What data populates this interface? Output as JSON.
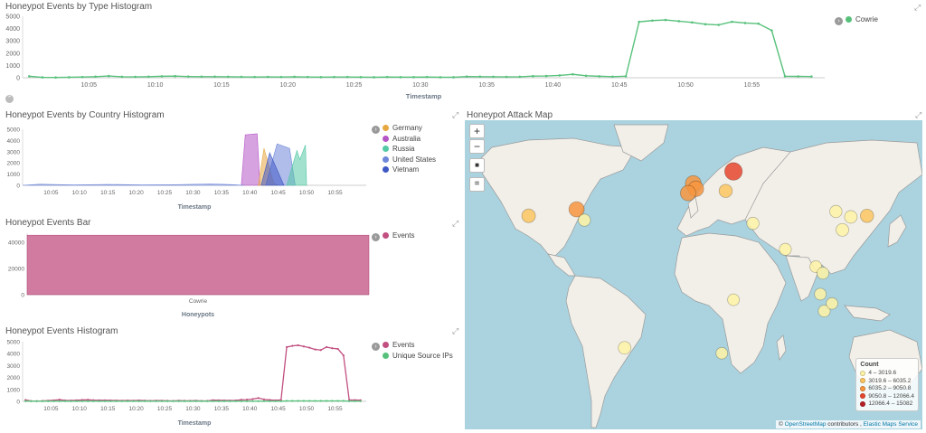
{
  "panels": {
    "type_hist": {
      "title": "Honeypot Events by Type Histogram",
      "xlabel": "Timestamp",
      "legend": [
        {
          "label": "Cowrie",
          "color": "#57c17b"
        }
      ]
    },
    "country_hist": {
      "title": "Honeypot Events by Country Histogram",
      "xlabel": "Timestamp",
      "legend": [
        {
          "label": "Germany",
          "color": "#e7a842"
        },
        {
          "label": "Australia",
          "color": "#b556c7"
        },
        {
          "label": "Russia",
          "color": "#54c9a6"
        },
        {
          "label": "United States",
          "color": "#6f87d8"
        },
        {
          "label": "Vietnam",
          "color": "#3f58c4"
        }
      ]
    },
    "bar": {
      "title": "Honeypot Events Bar",
      "xlabel": "Honeypots",
      "legend": [
        {
          "label": "Events",
          "color": "#c14f80"
        }
      ]
    },
    "events_hist": {
      "title": "Honeypot Events Histogram",
      "xlabel": "Timestamp",
      "legend": [
        {
          "label": "Events",
          "color": "#c14f80"
        },
        {
          "label": "Unique Source IPs",
          "color": "#57c17b"
        }
      ]
    },
    "map": {
      "title": "Honeypot Attack Map",
      "buttons": {
        "zoom_in": "+",
        "zoom_out": "−",
        "stop": "■",
        "crop": "⌗"
      },
      "legend_title": "Count",
      "legend": [
        {
          "label": "4 – 3019.6",
          "color": "#fff3a6"
        },
        {
          "label": "3019.6 – 6035.2",
          "color": "#fcc661"
        },
        {
          "label": "6035.2 – 9050.8",
          "color": "#f7953f"
        },
        {
          "label": "9050.8 – 12066.4",
          "color": "#e8472e"
        },
        {
          "label": "12066.4 – 15082",
          "color": "#b81f24"
        }
      ],
      "attribution": {
        "prefix": "© ",
        "osm": "OpenStreetMap",
        "mid": " contributors , ",
        "ems": "Elastic Maps Service"
      }
    }
  },
  "chart_data": [
    {
      "type": "line",
      "title": "Honeypot Events by Type Histogram",
      "xlabel": "Timestamp",
      "ylabel": "",
      "x_ticks": [
        "10:05",
        "10:10",
        "10:15",
        "10:20",
        "10:25",
        "10:30",
        "10:35",
        "10:40",
        "10:45",
        "10:50",
        "10:55"
      ],
      "y_ticks": [
        0,
        1000,
        2000,
        3000,
        4000,
        5000
      ],
      "ylim": [
        0,
        5000
      ],
      "x_minutes": [
        0,
        1,
        2,
        3,
        4,
        5,
        6,
        7,
        8,
        9,
        10,
        11,
        12,
        13,
        14,
        15,
        16,
        17,
        18,
        19,
        20,
        21,
        22,
        23,
        24,
        25,
        26,
        27,
        28,
        29,
        30,
        31,
        32,
        33,
        34,
        35,
        36,
        37,
        38,
        39,
        40,
        41,
        42,
        43,
        44,
        45,
        46,
        47,
        48,
        49,
        50,
        51,
        52,
        53,
        54,
        55,
        56,
        57,
        58,
        59
      ],
      "series": [
        {
          "name": "Cowrie",
          "color": "#57c17b",
          "values": [
            120,
            30,
            20,
            40,
            60,
            90,
            140,
            80,
            70,
            90,
            120,
            130,
            100,
            90,
            90,
            80,
            70,
            60,
            70,
            60,
            80,
            60,
            50,
            60,
            60,
            50,
            40,
            60,
            50,
            50,
            60,
            40,
            40,
            100,
            90,
            80,
            70,
            80,
            130,
            140,
            190,
            280,
            160,
            120,
            90,
            120,
            4550,
            4650,
            4700,
            4600,
            4500,
            4350,
            4300,
            4550,
            4450,
            4400,
            3850,
            120,
            110,
            100
          ]
        }
      ],
      "x_offset_minutes": -1
    },
    {
      "type": "area",
      "title": "Honeypot Events by Country Histogram",
      "xlabel": "Timestamp",
      "x_ticks": [
        "10:05",
        "10:10",
        "10:15",
        "10:20",
        "10:25",
        "10:30",
        "10:35",
        "10:40",
        "10:45",
        "10:50",
        "10:55"
      ],
      "y_ticks": [
        0,
        1000,
        2000,
        3000,
        4000,
        5000
      ],
      "ylim": [
        0,
        5000
      ],
      "series": [
        {
          "name": "Australia",
          "color": "#b556c7",
          "points": [
            [
              37.5,
              0
            ],
            [
              38.2,
              4500
            ],
            [
              40.3,
              4600
            ],
            [
              40.8,
              0
            ]
          ]
        },
        {
          "name": "Germany",
          "color": "#e7a842",
          "points": [
            [
              40.5,
              0
            ],
            [
              41.5,
              3300
            ],
            [
              43.2,
              200
            ],
            [
              44,
              0
            ]
          ]
        },
        {
          "name": "United States",
          "color": "#6f87d8",
          "points": [
            [
              41.8,
              0
            ],
            [
              43.8,
              3700
            ],
            [
              46,
              3300
            ],
            [
              47,
              0
            ]
          ]
        },
        {
          "name": "Vietnam",
          "color": "#3f58c4",
          "points": [
            [
              41,
              0
            ],
            [
              42.5,
              2900
            ],
            [
              45,
              0
            ]
          ]
        },
        {
          "name": "Russia",
          "color": "#54c9a6",
          "points": [
            [
              45.5,
              0
            ],
            [
              47.3,
              3100
            ],
            [
              47.8,
              2300
            ],
            [
              48.8,
              3600
            ],
            [
              49,
              0
            ]
          ]
        },
        {
          "name": "United States",
          "color": "#6f87d8",
          "points": [
            [
              -1,
              0
            ],
            [
              2,
              100
            ],
            [
              8,
              40
            ],
            [
              14,
              80
            ],
            [
              20,
              40
            ],
            [
              26,
              60
            ],
            [
              32,
              120
            ],
            [
              36,
              60
            ],
            [
              38,
              0
            ]
          ]
        }
      ]
    },
    {
      "type": "bar",
      "title": "Honeypot Events Bar",
      "xlabel": "Honeypots",
      "categories": [
        "Cowrie"
      ],
      "series": [
        {
          "name": "Events",
          "values": [
            45500
          ],
          "color": "#c14f80"
        }
      ],
      "y_ticks": [
        0,
        20000,
        40000
      ],
      "ylim": [
        0,
        47000
      ]
    },
    {
      "type": "line",
      "title": "Honeypot Events Histogram",
      "xlabel": "Timestamp",
      "x_ticks": [
        "10:05",
        "10:10",
        "10:15",
        "10:20",
        "10:25",
        "10:30",
        "10:35",
        "10:40",
        "10:45",
        "10:50",
        "10:55"
      ],
      "y_ticks": [
        0,
        1000,
        2000,
        3000,
        4000,
        5000
      ],
      "ylim": [
        0,
        5000
      ],
      "series": [
        {
          "name": "Events",
          "color": "#c14f80",
          "values": [
            120,
            30,
            20,
            40,
            60,
            90,
            140,
            80,
            70,
            90,
            120,
            130,
            100,
            90,
            90,
            80,
            70,
            60,
            70,
            60,
            80,
            60,
            50,
            60,
            60,
            50,
            40,
            60,
            50,
            50,
            60,
            40,
            40,
            100,
            90,
            80,
            70,
            80,
            130,
            140,
            190,
            280,
            160,
            120,
            90,
            120,
            4550,
            4650,
            4700,
            4600,
            4500,
            4350,
            4300,
            4550,
            4450,
            4400,
            3850,
            120,
            110,
            100
          ]
        },
        {
          "name": "Unique Source IPs",
          "color": "#57c17b",
          "values": [
            20,
            15,
            15,
            15,
            15,
            15,
            15,
            15,
            15,
            15,
            15,
            15,
            15,
            15,
            15,
            15,
            15,
            15,
            15,
            15,
            15,
            15,
            15,
            15,
            15,
            15,
            15,
            15,
            15,
            15,
            15,
            15,
            15,
            15,
            15,
            15,
            15,
            15,
            15,
            15,
            15,
            15,
            15,
            15,
            15,
            15,
            40,
            40,
            40,
            40,
            40,
            40,
            40,
            40,
            40,
            40,
            40,
            15,
            15,
            15
          ]
        }
      ],
      "x_offset_minutes": -1
    }
  ],
  "map_points": [
    {
      "name": "Russia",
      "lon": 37,
      "lat": 58,
      "count": 11500
    },
    {
      "name": "Netherlands",
      "lon": 6,
      "lat": 52.4,
      "count": 7800
    },
    {
      "name": "Germany",
      "lon": 8,
      "lat": 50,
      "count": 7100
    },
    {
      "name": "France",
      "lon": 2,
      "lat": 48,
      "count": 6800
    },
    {
      "name": "Ukraine",
      "lon": 31,
      "lat": 49,
      "count": 3300
    },
    {
      "name": "United States West",
      "lon": -121,
      "lat": 37.5,
      "count": 3900
    },
    {
      "name": "United States East",
      "lon": -84,
      "lat": 40.5,
      "count": 6600
    },
    {
      "name": "United States Southeast",
      "lon": -78,
      "lat": 35.5,
      "count": 2100
    },
    {
      "name": "Iran",
      "lon": 52,
      "lat": 34,
      "count": 2200
    },
    {
      "name": "India",
      "lon": 77,
      "lat": 22,
      "count": 2000
    },
    {
      "name": "Thailand",
      "lon": 100.5,
      "lat": 14,
      "count": 1800
    },
    {
      "name": "China East",
      "lon": 121,
      "lat": 31,
      "count": 2700
    },
    {
      "name": "China North",
      "lon": 116,
      "lat": 39.5,
      "count": 2200
    },
    {
      "name": "South Korea",
      "lon": 127.5,
      "lat": 37,
      "count": 2600
    },
    {
      "name": "Japan",
      "lon": 140,
      "lat": 37.5,
      "count": 3400
    },
    {
      "name": "Vietnam",
      "lon": 106,
      "lat": 11,
      "count": 1900
    },
    {
      "name": "Singapore",
      "lon": 104,
      "lat": 1.3,
      "count": 1700
    },
    {
      "name": "Indonesia",
      "lon": 107,
      "lat": -6.5,
      "count": 1800
    },
    {
      "name": "Indonesia East",
      "lon": 113,
      "lat": -3,
      "count": 1500
    },
    {
      "name": "Kenya",
      "lon": 37,
      "lat": -1.3,
      "count": 1700
    },
    {
      "name": "South Africa",
      "lon": 28,
      "lat": -26,
      "count": 1600
    },
    {
      "name": "Brazil",
      "lon": -47,
      "lat": -23.5,
      "count": 2700
    }
  ]
}
